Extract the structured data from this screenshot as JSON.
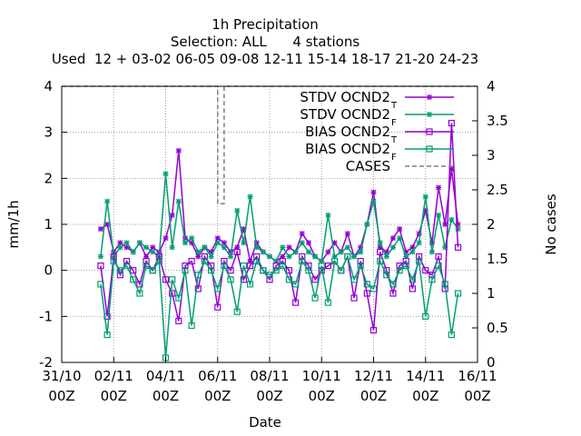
{
  "chart_data": {
    "type": "line",
    "title_lines": [
      "1h Precipitation",
      "Selection: ALL      4 stations",
      "Used  12 + 03-02 06-05 09-08 12-11 15-14 18-17 21-20 24-23"
    ],
    "xlabel": "Date",
    "ylabel": "mm/1h",
    "y2label": "No cases",
    "ylim": [
      -2,
      4
    ],
    "y2lim": [
      0,
      4
    ],
    "yticks": [
      "-2",
      "-1",
      "0",
      "1",
      "2",
      "3",
      "4"
    ],
    "y2ticks": [
      "0",
      "0.5",
      "1",
      "1.5",
      "2",
      "2.5",
      "3",
      "3.5",
      "4"
    ],
    "xticks": [
      {
        "day": 0,
        "line1": "31/10",
        "line2": "00Z"
      },
      {
        "day": 2,
        "line1": "02/11",
        "line2": "00Z"
      },
      {
        "day": 4,
        "line1": "04/11",
        "line2": "00Z"
      },
      {
        "day": 6,
        "line1": "06/11",
        "line2": "00Z"
      },
      {
        "day": 8,
        "line1": "08/11",
        "line2": "00Z"
      },
      {
        "day": 10,
        "line1": "10/11",
        "line2": "00Z"
      },
      {
        "day": 12,
        "line1": "12/11",
        "line2": "00Z"
      },
      {
        "day": 14,
        "line1": "14/11",
        "line2": "00Z"
      },
      {
        "day": 16,
        "line1": "16/11",
        "line2": "00Z"
      }
    ],
    "xlim_days": [
      0,
      16
    ],
    "grid": true,
    "legend_position": "top-right",
    "series": [
      {
        "name": "STDV OCND2",
        "subscript": "T",
        "color": "#9400d3",
        "marker": "star",
        "x": [
          1.5,
          1.75,
          2.0,
          2.25,
          2.5,
          2.75,
          3.0,
          3.25,
          3.5,
          3.75,
          4.0,
          4.25,
          4.5,
          4.75,
          5.0,
          5.25,
          5.5,
          5.75,
          6.0,
          6.25,
          6.5,
          6.75,
          7.0,
          7.25,
          7.5,
          7.75,
          8.0,
          8.25,
          8.5,
          8.75,
          9.0,
          9.25,
          9.5,
          9.75,
          10.0,
          10.25,
          10.5,
          10.75,
          11.0,
          11.25,
          11.5,
          11.75,
          12.0,
          12.25,
          12.5,
          12.75,
          13.0,
          13.25,
          13.5,
          13.75,
          14.0,
          14.25,
          14.5,
          14.75,
          15.0,
          15.25
        ],
        "y": [
          0.9,
          1.0,
          0.4,
          0.6,
          0.5,
          0.4,
          0.6,
          0.3,
          0.5,
          0.4,
          0.7,
          1.2,
          2.6,
          0.7,
          0.6,
          0.3,
          0.5,
          0.4,
          0.7,
          0.6,
          0.4,
          0.5,
          0.9,
          0.2,
          0.6,
          0.4,
          0.3,
          0.2,
          0.3,
          0.5,
          0.4,
          0.8,
          0.6,
          0.3,
          0.2,
          0.4,
          0.6,
          0.4,
          0.8,
          0.3,
          0.5,
          1.0,
          1.7,
          0.5,
          0.4,
          0.7,
          0.9,
          0.4,
          0.5,
          0.8,
          1.3,
          0.6,
          1.8,
          1.0,
          2.2,
          1.0
        ]
      },
      {
        "name": "STDV OCND2",
        "subscript": "F",
        "color": "#009e73",
        "marker": "star",
        "x": [
          1.5,
          1.75,
          2.0,
          2.25,
          2.5,
          2.75,
          3.0,
          3.25,
          3.5,
          3.75,
          4.0,
          4.25,
          4.5,
          4.75,
          5.0,
          5.25,
          5.5,
          5.75,
          6.0,
          6.25,
          6.5,
          6.75,
          7.0,
          7.25,
          7.5,
          7.75,
          8.0,
          8.25,
          8.5,
          8.75,
          9.0,
          9.25,
          9.5,
          9.75,
          10.0,
          10.25,
          10.5,
          10.75,
          11.0,
          11.25,
          11.5,
          11.75,
          12.0,
          12.25,
          12.5,
          12.75,
          13.0,
          13.25,
          13.5,
          13.75,
          14.0,
          14.25,
          14.5,
          14.75,
          15.0,
          15.25
        ],
        "y": [
          0.3,
          1.5,
          0.3,
          0.5,
          0.6,
          0.4,
          0.6,
          0.5,
          0.4,
          0.3,
          2.1,
          0.5,
          1.5,
          0.6,
          0.7,
          0.4,
          0.5,
          0.3,
          0.6,
          0.5,
          0.3,
          1.3,
          0.6,
          1.6,
          0.5,
          0.4,
          0.3,
          0.2,
          0.5,
          0.3,
          0.4,
          0.6,
          0.4,
          0.3,
          0.2,
          1.2,
          0.3,
          0.4,
          0.5,
          0.3,
          0.4,
          1.0,
          1.5,
          0.6,
          0.3,
          0.5,
          0.7,
          0.3,
          0.4,
          0.6,
          1.6,
          0.4,
          1.2,
          0.5,
          1.1,
          0.9
        ]
      },
      {
        "name": "BIAS OCND2",
        "subscript": "T",
        "color": "#9400d3",
        "marker": "square",
        "x": [
          1.5,
          1.75,
          2.0,
          2.25,
          2.5,
          2.75,
          3.0,
          3.25,
          3.5,
          3.75,
          4.0,
          4.25,
          4.5,
          4.75,
          5.0,
          5.25,
          5.5,
          5.75,
          6.0,
          6.25,
          6.5,
          6.75,
          7.0,
          7.25,
          7.5,
          7.75,
          8.0,
          8.25,
          8.5,
          8.75,
          9.0,
          9.25,
          9.5,
          9.75,
          10.0,
          10.25,
          10.5,
          10.75,
          11.0,
          11.25,
          11.5,
          11.75,
          12.0,
          12.25,
          12.5,
          12.75,
          13.0,
          13.25,
          13.5,
          13.75,
          14.0,
          14.25,
          14.5,
          14.75,
          15.0,
          15.25
        ],
        "y": [
          0.1,
          -1.0,
          0.3,
          -0.1,
          0.2,
          0.0,
          -0.3,
          0.2,
          0.0,
          0.3,
          -0.2,
          -0.5,
          -1.1,
          0.1,
          0.2,
          -0.4,
          0.3,
          0.1,
          -0.8,
          0.2,
          0.0,
          0.4,
          -0.2,
          0.1,
          0.3,
          0.0,
          -0.2,
          0.1,
          0.2,
          0.0,
          -0.7,
          0.3,
          0.1,
          -0.2,
          0.0,
          0.1,
          0.2,
          0.0,
          0.3,
          -0.6,
          0.2,
          -0.5,
          -1.3,
          0.4,
          0.0,
          -0.5,
          0.1,
          0.2,
          -0.4,
          0.3,
          0.0,
          -0.1,
          0.3,
          -0.4,
          3.2,
          0.5
        ]
      },
      {
        "name": "BIAS OCND2",
        "subscript": "F",
        "color": "#009e73",
        "marker": "square",
        "x": [
          1.5,
          1.75,
          2.0,
          2.25,
          2.5,
          2.75,
          3.0,
          3.25,
          3.5,
          3.75,
          4.0,
          4.25,
          4.5,
          4.75,
          5.0,
          5.25,
          5.5,
          5.75,
          6.0,
          6.25,
          6.5,
          6.75,
          7.0,
          7.25,
          7.5,
          7.75,
          8.0,
          8.25,
          8.5,
          8.75,
          9.0,
          9.25,
          9.5,
          9.75,
          10.0,
          10.25,
          10.5,
          10.75,
          11.0,
          11.25,
          11.5,
          11.75,
          12.0,
          12.25,
          12.5,
          12.75,
          13.0,
          13.25,
          13.5,
          13.75,
          14.0,
          14.25,
          14.5,
          14.75,
          15.0,
          15.25
        ],
        "y": [
          -0.3,
          -1.4,
          0.2,
          0.0,
          0.1,
          -0.2,
          -0.5,
          0.1,
          0.0,
          0.2,
          -1.9,
          -0.2,
          -0.6,
          0.0,
          -1.2,
          -0.1,
          0.2,
          0.0,
          -0.4,
          0.1,
          -0.2,
          -0.9,
          0.1,
          -0.3,
          0.2,
          0.0,
          -0.1,
          0.0,
          0.1,
          -0.2,
          -0.3,
          0.2,
          0.0,
          -0.6,
          0.1,
          -0.7,
          0.2,
          0.0,
          0.3,
          -0.2,
          0.1,
          -0.3,
          -0.4,
          0.2,
          -0.1,
          -0.3,
          0.0,
          0.1,
          -0.2,
          0.2,
          -1.0,
          -0.2,
          0.1,
          -0.3,
          -1.4,
          -0.5
        ]
      },
      {
        "name": "CASES",
        "subscript": "",
        "color": "#808080",
        "marker": "none",
        "axis": "y2",
        "x": [
          0.0,
          6.0,
          6.0,
          6.25,
          6.25,
          13.75,
          13.75,
          16.0
        ],
        "y": [
          4.0,
          4.0,
          2.3,
          2.3,
          4.0,
          4.0,
          4.0,
          4.0
        ]
      }
    ]
  }
}
